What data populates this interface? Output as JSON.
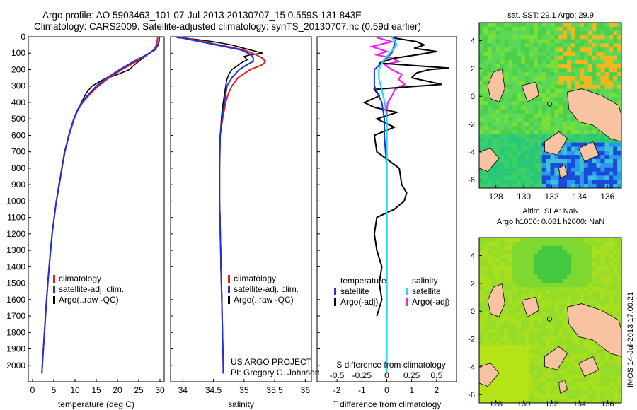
{
  "header": {
    "line1": "Argo profile: AO 5903463_101 07-Jul-2013 20130707_15 0.559S 131.843E",
    "line2": "Climatology: CARS2009. Satellite-adjusted climatology: synTS_20130707.nc (0.59d earlier)"
  },
  "colors": {
    "climatology": "#e02020",
    "satellite": "#1a33e0",
    "argo": "#000000",
    "salinity_sat": "#22dde8",
    "salinity_argo": "#ee22ee",
    "land": "#f7c3a0"
  },
  "chart_data": [
    {
      "type": "line",
      "ylabel": "",
      "xlabel": "temperature (deg C)",
      "xlim": [
        -1,
        31
      ],
      "ylim": [
        2100,
        0
      ],
      "xticks": [
        "0",
        "5",
        "10",
        "15",
        "20",
        "25",
        "30"
      ],
      "yticks": [
        "0",
        "100",
        "200",
        "300",
        "400",
        "500",
        "600",
        "700",
        "800",
        "900",
        "1000",
        "1100",
        "1200",
        "1300",
        "1400",
        "1500",
        "1600",
        "1700",
        "1800",
        "1900",
        "2000"
      ],
      "legend": [
        "climatology",
        "satellite-adj. clim.",
        "Argo(..raw -QC)"
      ],
      "series": [
        {
          "name": "climatology",
          "depth": [
            0,
            50,
            80,
            110,
            150,
            200,
            250,
            300,
            350,
            400,
            450,
            500,
            600,
            700,
            800,
            900,
            1000,
            1200,
            1400,
            1600,
            1800,
            2000,
            2050
          ],
          "values": [
            29.5,
            29.2,
            28.5,
            27,
            24.5,
            21,
            18,
            15.5,
            13.5,
            11.8,
            10.6,
            9.8,
            8.6,
            7.6,
            6.9,
            6.3,
            5.6,
            4.6,
            3.9,
            3.3,
            2.8,
            2.3,
            2.2
          ]
        },
        {
          "name": "satellite-adj. clim.",
          "depth": [
            0,
            50,
            80,
            110,
            150,
            200,
            250,
            300,
            350,
            400,
            450,
            500,
            600,
            700,
            800,
            900,
            1000,
            1200,
            1400,
            1600,
            1800,
            2000,
            2050
          ],
          "values": [
            29.9,
            29.6,
            28.8,
            26.8,
            23.8,
            20.5,
            17.5,
            15,
            13.2,
            11.6,
            10.5,
            9.7,
            8.5,
            7.6,
            6.9,
            6.3,
            5.6,
            4.6,
            3.9,
            3.3,
            2.8,
            2.3,
            2.2
          ]
        },
        {
          "name": "Argo(..raw -QC)",
          "depth": [
            5,
            30,
            60,
            90,
            120,
            150,
            180,
            200,
            230,
            260,
            300,
            340,
            400,
            450,
            500,
            550,
            600,
            700,
            800,
            900,
            1000,
            1100,
            1200,
            1300,
            1400,
            1500,
            1600,
            1700
          ],
          "values": [
            29.9,
            29.8,
            29.3,
            28.2,
            26.5,
            25,
            23.6,
            22.8,
            20,
            16.7,
            14,
            12.7,
            11.5,
            10.5,
            9.7,
            9.2,
            8.6,
            7.5,
            6.9,
            6.2,
            5.6,
            5.1,
            4.6,
            4.2,
            3.9,
            3.6,
            3.3,
            3
          ]
        }
      ]
    },
    {
      "type": "line",
      "xlabel": "salinity",
      "xlim": [
        33.8,
        36.1
      ],
      "ylim": [
        2100,
        0
      ],
      "xticks": [
        "34",
        "34.5",
        "35",
        "35.5",
        "36"
      ],
      "legend": [
        "climatology",
        "satellite-adj. clim.",
        "Argo(..raw -QC)"
      ],
      "annotation": [
        "US ARGO PROJECT",
        "PI: Gregory C. Johnson"
      ],
      "series": [
        {
          "name": "climatology",
          "depth": [
            0,
            20,
            50,
            80,
            110,
            130,
            150,
            170,
            200,
            250,
            300,
            350,
            400,
            500,
            600,
            800,
            1000,
            1500,
            2000,
            2050
          ],
          "values": [
            33.95,
            34.2,
            34.6,
            35.0,
            35.2,
            35.3,
            35.35,
            35.3,
            35.1,
            34.9,
            34.8,
            34.74,
            34.7,
            34.65,
            34.61,
            34.6,
            34.6,
            34.63,
            34.66,
            34.66
          ]
        },
        {
          "name": "satellite-adj. clim.",
          "depth": [
            0,
            20,
            50,
            80,
            110,
            130,
            150,
            170,
            200,
            250,
            300,
            350,
            400,
            500,
            600,
            800,
            1000,
            1500,
            2000,
            2050
          ],
          "values": [
            33.9,
            34.15,
            34.55,
            34.95,
            35.12,
            35.15,
            35.15,
            35.05,
            34.92,
            34.8,
            34.72,
            34.7,
            34.68,
            34.64,
            34.61,
            34.6,
            34.6,
            34.63,
            34.66,
            34.66
          ]
        },
        {
          "name": "Argo(..raw -QC)",
          "depth": [
            5,
            15,
            30,
            50,
            70,
            90,
            100,
            110,
            120,
            140,
            160,
            180,
            200,
            230,
            260,
            300,
            350,
            400,
            450,
            500,
            600,
            700,
            800,
            900,
            1000,
            1100,
            1200,
            1300,
            1400,
            1500,
            1600,
            1700
          ],
          "values": [
            33.9,
            34.2,
            34.5,
            34.8,
            35.0,
            35.2,
            35.3,
            35.1,
            35.0,
            35.05,
            34.95,
            34.88,
            34.8,
            34.75,
            34.72,
            34.7,
            34.68,
            34.66,
            34.64,
            34.63,
            34.61,
            34.6,
            34.6,
            34.6,
            34.6,
            34.61,
            34.61,
            34.62,
            34.62,
            34.63,
            34.64,
            34.64
          ]
        }
      ]
    },
    {
      "type": "line",
      "xlabel": "T difference from climatology",
      "xlabel2": "S difference from climatology",
      "xlim": [
        -2.8,
        2.8
      ],
      "ylim": [
        2100,
        0
      ],
      "xticks": [
        "-2",
        "-1",
        "0",
        "1",
        "2"
      ],
      "xticks2": [
        "-0.5",
        "-0.25",
        "0",
        "0.25",
        "0.5"
      ],
      "legend": [
        "temperature",
        "satellite",
        "Argo(-adj)",
        "salinity",
        "satellite",
        "Argo(-adj)"
      ],
      "series": [
        {
          "name": "satellite",
          "depth": [
            0,
            100,
            200,
            300,
            400,
            500,
            600,
            800,
            1000,
            1500,
            2000,
            2050
          ],
          "values": [
            0.4,
            0.2,
            -0.5,
            -0.5,
            -0.2,
            -0.1,
            -0.1,
            0,
            0,
            0,
            0,
            0
          ]
        },
        {
          "name": "Argo(-adj)",
          "depth": [
            5,
            30,
            50,
            70,
            90,
            110,
            130,
            160,
            190,
            200,
            220,
            250,
            290,
            320,
            360,
            400,
            430,
            460,
            500,
            550,
            600,
            700,
            800,
            900,
            950,
            1000,
            1050,
            1100,
            1200,
            1300,
            1400,
            1500,
            1600,
            1700
          ],
          "values": [
            0.2,
            1.2,
            1.5,
            1.1,
            2.0,
            1.2,
            0.3,
            -0.3,
            2.5,
            1.7,
            1.2,
            1.0,
            2.2,
            -0.5,
            -0.3,
            -0.9,
            -0.5,
            0.4,
            -0.4,
            0.3,
            -0.5,
            -0.4,
            0.5,
            0.6,
            0.8,
            0.7,
            0.3,
            -0.4,
            -0.5,
            -0.4,
            -0.2,
            -0.3,
            -0.2,
            -0.4
          ]
        },
        {
          "name": "satellite",
          "depth": [
            0,
            50,
            100,
            150,
            200,
            250,
            300,
            400,
            500,
            700,
            1000,
            1500,
            2000,
            2050
          ],
          "values": [
            0.05,
            0.1,
            0.03,
            -0.04,
            -0.08,
            -0.08,
            -0.06,
            -0.02,
            0,
            0,
            0,
            0,
            0,
            0
          ]
        },
        {
          "name": "Argo(-adj)",
          "depth": [
            5,
            30,
            60,
            90,
            110,
            130,
            150,
            170,
            200,
            230,
            260,
            290,
            320,
            350,
            400,
            450,
            500,
            600,
            700,
            800,
            900,
            1000,
            1200,
            1400,
            1600,
            1700
          ],
          "values": [
            -0.1,
            0.05,
            -0.15,
            0.0,
            -0.1,
            0.05,
            0.12,
            -0.02,
            0.05,
            0.15,
            0.12,
            0.18,
            0.08,
            0.06,
            0.01,
            0.0,
            0.0,
            0.0,
            0.0,
            0.0,
            0.0,
            0.0,
            0.0,
            0.0,
            0.0,
            0.0
          ]
        }
      ]
    }
  ],
  "maps": {
    "sst": {
      "title": "sat. SST: 29.1  Argo: 29.9",
      "xticks": [
        "128",
        "130",
        "132",
        "134",
        "136"
      ],
      "yticks": [
        "4",
        "2",
        "0",
        "-2",
        "-4",
        "-6"
      ]
    },
    "sla": {
      "title1": "Altim. SLA: NaN",
      "title2": "Argo h1000: 0.081 h2000: NaN",
      "xticks": [
        "128",
        "130",
        "132",
        "134",
        "136"
      ],
      "yticks": [
        "4",
        "2",
        "0",
        "-2",
        "-4",
        "-6"
      ]
    },
    "stamp": "IMOS 14-Jul-2013 17:00:21"
  }
}
